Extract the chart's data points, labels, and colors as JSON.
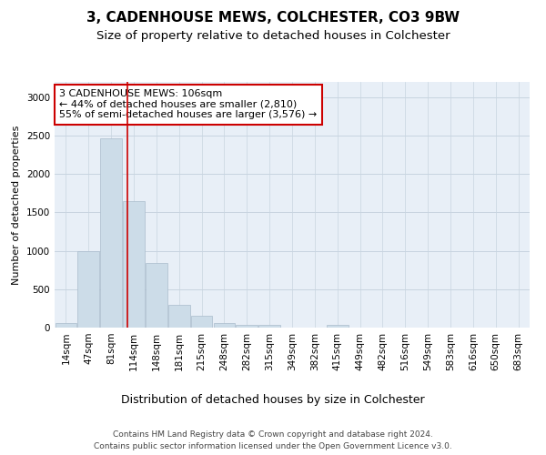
{
  "title": "3, CADENHOUSE MEWS, COLCHESTER, CO3 9BW",
  "subtitle": "Size of property relative to detached houses in Colchester",
  "xlabel": "Distribution of detached houses by size in Colchester",
  "ylabel": "Number of detached properties",
  "bar_color": "#ccdce8",
  "bar_edgecolor": "#aabccc",
  "background_color": "#ffffff",
  "axes_facecolor": "#e8eff7",
  "grid_color": "#c8d4e0",
  "categories": [
    "14sqm",
    "47sqm",
    "81sqm",
    "114sqm",
    "148sqm",
    "181sqm",
    "215sqm",
    "248sqm",
    "282sqm",
    "315sqm",
    "349sqm",
    "382sqm",
    "415sqm",
    "449sqm",
    "482sqm",
    "516sqm",
    "549sqm",
    "583sqm",
    "616sqm",
    "650sqm",
    "683sqm"
  ],
  "values": [
    55,
    1000,
    2460,
    1650,
    840,
    300,
    150,
    55,
    40,
    30,
    5,
    5,
    30,
    5,
    0,
    0,
    0,
    0,
    0,
    0,
    0
  ],
  "ylim": [
    0,
    3200
  ],
  "yticks": [
    0,
    500,
    1000,
    1500,
    2000,
    2500,
    3000
  ],
  "property_line_x": 2.72,
  "annotation_text": "3 CADENHOUSE MEWS: 106sqm\n← 44% of detached houses are smaller (2,810)\n55% of semi-detached houses are larger (3,576) →",
  "annotation_box_color": "#ffffff",
  "annotation_box_edgecolor": "#cc0000",
  "property_line_color": "#cc0000",
  "footer_line1": "Contains HM Land Registry data © Crown copyright and database right 2024.",
  "footer_line2": "Contains public sector information licensed under the Open Government Licence v3.0.",
  "title_fontsize": 11,
  "subtitle_fontsize": 9.5,
  "xlabel_fontsize": 9,
  "ylabel_fontsize": 8,
  "tick_fontsize": 7.5,
  "annotation_fontsize": 8,
  "footer_fontsize": 6.5
}
